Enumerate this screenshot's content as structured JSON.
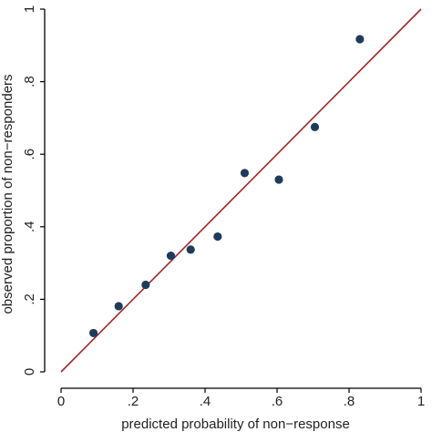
{
  "chart_data": {
    "type": "scatter",
    "title": "",
    "xlabel": "predicted probability of non−response",
    "ylabel": "observed proportion of non−responders",
    "xlim": [
      0,
      1
    ],
    "ylim": [
      0,
      1
    ],
    "x_ticks": [
      "0",
      ".2",
      ".4",
      ".6",
      ".8",
      "1"
    ],
    "y_ticks": [
      "0",
      ".2",
      ".4",
      ".6",
      ".8",
      "1"
    ],
    "grid": false,
    "legend": "none",
    "points": [
      {
        "x": 0.09,
        "y": 0.107
      },
      {
        "x": 0.16,
        "y": 0.181
      },
      {
        "x": 0.235,
        "y": 0.24
      },
      {
        "x": 0.305,
        "y": 0.32
      },
      {
        "x": 0.36,
        "y": 0.337
      },
      {
        "x": 0.435,
        "y": 0.373
      },
      {
        "x": 0.51,
        "y": 0.548
      },
      {
        "x": 0.605,
        "y": 0.53
      },
      {
        "x": 0.705,
        "y": 0.675
      },
      {
        "x": 0.83,
        "y": 0.917
      }
    ],
    "reference_line": {
      "from": [
        0,
        0
      ],
      "to": [
        1,
        1
      ]
    },
    "colors": {
      "points": "#1f3b5a",
      "line": "#a02828",
      "axis": "#000000"
    }
  }
}
